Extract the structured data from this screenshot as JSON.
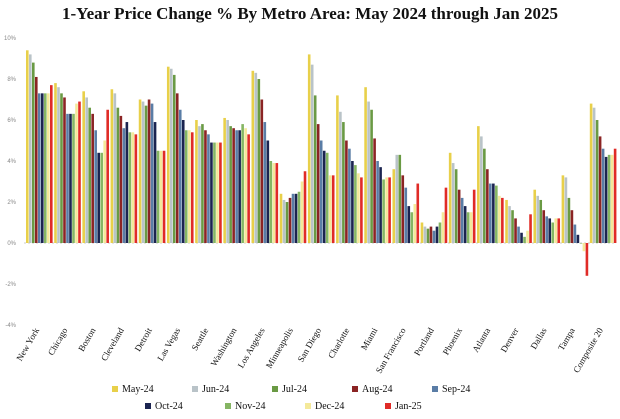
{
  "chart_data": {
    "type": "bar",
    "title": "1-Year Price Change % By Metro Area: May 2024 through Jan 2025",
    "xlabel": "",
    "ylabel": "",
    "ylim": [
      -4,
      10
    ],
    "yticks": [
      -4,
      -2,
      0,
      2,
      4,
      6,
      8,
      10
    ],
    "ytick_labels": [
      "-4%",
      "-2%",
      "0%",
      "2%",
      "4%",
      "6%",
      "8%",
      "10%"
    ],
    "grid": false,
    "legend_position": "bottom",
    "categories": [
      "New York",
      "Chicago",
      "Boston",
      "Cleveland",
      "Detroit",
      "Las Vegas",
      "Seattle",
      "Washington",
      "Los Angeles",
      "Minneapolis",
      "San Diego",
      "Charlotte",
      "Miami",
      "San Francisco",
      "Portland",
      "Phoenix",
      "Atlanta",
      "Denver",
      "Dallas",
      "Tampa",
      "Composite 20"
    ],
    "series": [
      {
        "name": "May-24",
        "color": "#e8d04a",
        "values": [
          9.4,
          7.8,
          7.4,
          7.5,
          7.0,
          8.6,
          6.0,
          6.1,
          8.4,
          2.4,
          9.2,
          7.2,
          7.6,
          3.6,
          1.0,
          4.4,
          5.7,
          2.1,
          2.6,
          3.3,
          6.8
        ]
      },
      {
        "name": "Jun-24",
        "color": "#b9c3c8",
        "values": [
          9.2,
          7.6,
          7.1,
          7.3,
          6.9,
          8.5,
          5.7,
          6.0,
          8.3,
          2.1,
          8.7,
          6.4,
          6.9,
          4.3,
          0.8,
          3.9,
          5.2,
          1.8,
          2.3,
          3.2,
          6.6
        ]
      },
      {
        "name": "Jul-24",
        "color": "#6a9a44",
        "values": [
          8.8,
          7.3,
          6.6,
          6.6,
          6.7,
          8.2,
          5.8,
          5.7,
          8.0,
          2.0,
          7.2,
          5.9,
          6.5,
          4.3,
          0.7,
          3.6,
          4.6,
          1.6,
          2.1,
          2.2,
          6.0
        ]
      },
      {
        "name": "Aug-24",
        "color": "#8b2424",
        "values": [
          8.1,
          7.1,
          6.3,
          6.2,
          7.0,
          7.3,
          5.5,
          5.6,
          7.0,
          2.2,
          5.8,
          5.0,
          5.1,
          3.3,
          0.8,
          2.6,
          3.6,
          1.2,
          1.6,
          1.6,
          5.2
        ]
      },
      {
        "name": "Sep-24",
        "color": "#5a7da6",
        "values": [
          7.3,
          6.3,
          5.5,
          5.6,
          6.8,
          6.5,
          5.3,
          5.5,
          5.9,
          2.4,
          5.0,
          4.6,
          4.0,
          2.7,
          0.6,
          2.2,
          2.9,
          0.8,
          1.3,
          0.9,
          4.6
        ]
      },
      {
        "name": "Oct-24",
        "color": "#1b2450",
        "values": [
          7.3,
          6.3,
          4.4,
          5.9,
          5.9,
          6.0,
          4.9,
          5.5,
          5.0,
          2.4,
          4.5,
          4.0,
          3.7,
          1.8,
          0.8,
          1.8,
          2.9,
          0.5,
          1.2,
          0.4,
          4.2
        ]
      },
      {
        "name": "Nov-24",
        "color": "#85b563",
        "values": [
          7.3,
          6.3,
          4.4,
          5.4,
          4.5,
          5.5,
          4.9,
          5.8,
          4.0,
          2.5,
          4.4,
          3.8,
          3.1,
          1.5,
          1.0,
          1.5,
          2.8,
          0.3,
          1.0,
          0.0,
          4.3
        ]
      },
      {
        "name": "Dec-24",
        "color": "#f4e99a",
        "values": [
          7.3,
          6.8,
          5.0,
          5.4,
          4.5,
          5.5,
          4.9,
          5.6,
          3.9,
          3.0,
          3.3,
          3.4,
          3.2,
          1.9,
          1.5,
          1.5,
          2.3,
          0.6,
          1.2,
          -0.4,
          4.3
        ]
      },
      {
        "name": "Jan-25",
        "color": "#e02b27",
        "values": [
          7.7,
          6.9,
          6.5,
          5.3,
          4.5,
          5.4,
          4.9,
          5.3,
          3.9,
          3.5,
          3.3,
          3.2,
          3.2,
          2.9,
          2.7,
          2.6,
          2.2,
          1.4,
          1.2,
          -1.6,
          4.6
        ]
      }
    ]
  }
}
